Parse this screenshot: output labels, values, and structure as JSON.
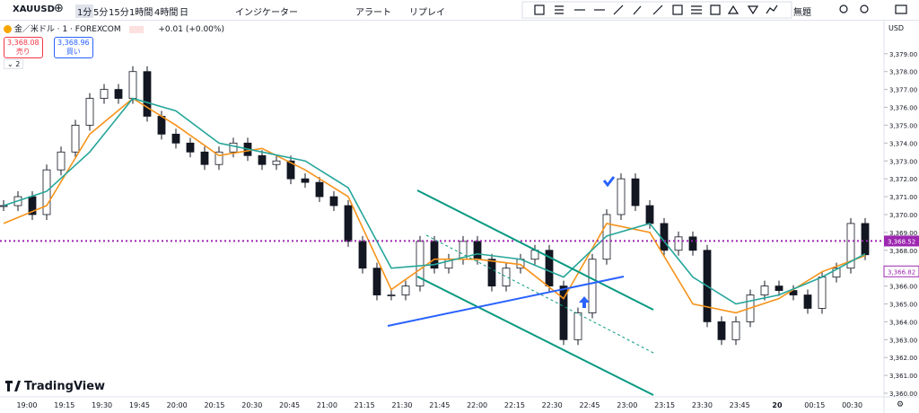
{
  "toolbar": {
    "symbol": "XAUUSD",
    "intervals": [
      "1分",
      "5分",
      "15分",
      "1時間",
      "4時間",
      "日"
    ],
    "indicators": "インジケーター",
    "alert": "アラート",
    "replay": "リプレイ",
    "layout_name": "無題"
  },
  "legend": {
    "title": "金／米ドル · 1 · FOREXCOM",
    "change": "+0.01 (+0.00%)",
    "sell_price": "3,368.08",
    "sell_label": "売り",
    "buy_price": "3,368.96",
    "buy_label": "買い",
    "indicator_count": "2"
  },
  "logo": "TradingView",
  "chart_data": {
    "type": "candlestick",
    "currency": "USD",
    "closes": [
      3370.5,
      3371,
      3370,
      3372.5,
      3373.5,
      3375,
      3376.5,
      3377,
      3376.5,
      3378,
      3375.5,
      3374.5,
      3374,
      3373.5,
      3372.8,
      3373.5,
      3374,
      3373.3,
      3372.8,
      3373,
      3372,
      3371.8,
      3371,
      3370.5,
      3368.5,
      3367,
      3365.5,
      3365.5,
      3366,
      3368.5,
      3367,
      3367.5,
      3368.5,
      3367.5,
      3366,
      3367,
      3367.5,
      3368,
      3366,
      3363,
      3364.5,
      3367.5,
      3370,
      3372,
      3370.5,
      3369.5,
      3368,
      3368.75,
      3368,
      3364,
      3363,
      3364,
      3365.5,
      3366,
      3365.75,
      3365.5,
      3364.75,
      3366.5,
      3367,
      3369.5,
      3367.75
    ],
    "series": [
      {
        "name": "MA fast",
        "color": "#f7931a",
        "values": [
          3369.5,
          3370.5,
          3374.5,
          3376.5,
          3375,
          3373.3,
          3373.7,
          3372.5,
          3371,
          3365.8,
          3367.5,
          3367.5,
          3367.2,
          3365.3,
          3369.5,
          3369,
          3365,
          3364.5,
          3365.3,
          3366.8,
          3367.7
        ]
      },
      {
        "name": "MA slow",
        "color": "#26a69a",
        "values": [
          3370.5,
          3371.3,
          3373.5,
          3376.5,
          3375.8,
          3374,
          3373.5,
          3373,
          3371.5,
          3367,
          3367.2,
          3367.8,
          3367.5,
          3366.5,
          3368.8,
          3369.5,
          3366.5,
          3365,
          3365.5,
          3366.5,
          3367.8
        ]
      }
    ],
    "x_labels": [
      "19:00",
      "19:15",
      "19:30",
      "19:45",
      "20:00",
      "20:15",
      "20:30",
      "20:45",
      "21:00",
      "21:15",
      "21:30",
      "21:45",
      "22:00",
      "22:15",
      "22:30",
      "22:45",
      "23:00",
      "23:15",
      "23:30",
      "23:45",
      "20",
      "00:15",
      "00:30"
    ],
    "ylim": [
      3359.8,
      3380.9
    ],
    "yticks": [
      {
        "value": 3360,
        "label": "3,360.00"
      },
      {
        "value": 3361,
        "label": "3,361.00"
      },
      {
        "value": 3362,
        "label": "3,362.00"
      },
      {
        "value": 3363,
        "label": "3,363.00"
      },
      {
        "value": 3364,
        "label": "3,364.00"
      },
      {
        "value": 3365,
        "label": "3,365.00"
      },
      {
        "value": 3366,
        "label": "3,366.00"
      },
      {
        "value": 3367,
        "label": "3,367.00"
      },
      {
        "value": 3368,
        "label": "3,368.00"
      },
      {
        "value": 3369,
        "label": "3,369.00"
      },
      {
        "value": 3370,
        "label": "3,370.00"
      },
      {
        "value": 3371,
        "label": "3,371.00"
      },
      {
        "value": 3372,
        "label": "3,372.00"
      },
      {
        "value": 3373,
        "label": "3,373.00"
      },
      {
        "value": 3374,
        "label": "3,374.00"
      },
      {
        "value": 3375,
        "label": "3,375.00"
      },
      {
        "value": 3376,
        "label": "3,376.00"
      },
      {
        "value": 3377,
        "label": "3,377.00"
      },
      {
        "value": 3378,
        "label": "3,378.00"
      },
      {
        "value": 3379,
        "label": "3,379.00"
      }
    ],
    "price_line": {
      "value": 3368.52,
      "label": "3,368.52",
      "color": "#9c27b0"
    },
    "last_price": {
      "value": 3366.82,
      "label": "3,366.82"
    }
  }
}
